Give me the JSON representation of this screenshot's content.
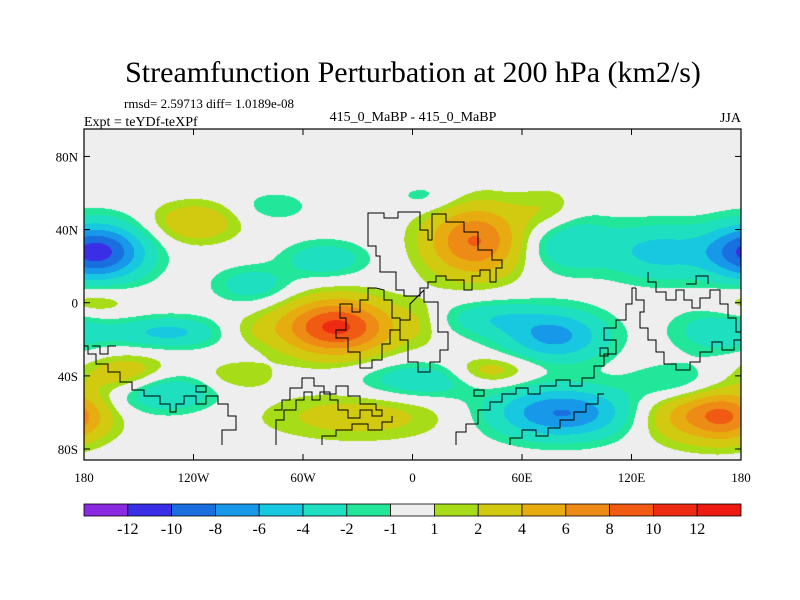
{
  "chart_data": {
    "type": "heatmap",
    "title": "Streamfunction Perturbation at 200 hPa (km2/s)",
    "stats_line": "rmsd= 2.59713 diff= 1.0189e-08",
    "experiment_label": "Expt = teYDf-teXPf",
    "center_label": "415_0_MaBP - 415_0_MaBP",
    "season_label": "JJA",
    "x_range": [
      -180,
      180
    ],
    "y_range": [
      -90,
      90
    ],
    "x_ticks": [
      {
        "value": -180,
        "label": "180"
      },
      {
        "value": -120,
        "label": "120W"
      },
      {
        "value": -60,
        "label": "60W"
      },
      {
        "value": 0,
        "label": "0"
      },
      {
        "value": 60,
        "label": "60E"
      },
      {
        "value": 120,
        "label": "120E"
      },
      {
        "value": 180,
        "label": "180"
      }
    ],
    "y_ticks": [
      {
        "value": 80,
        "label": "80N"
      },
      {
        "value": 40,
        "label": "40N"
      },
      {
        "value": 0,
        "label": "0"
      },
      {
        "value": -40,
        "label": "40S"
      },
      {
        "value": -80,
        "label": "80S"
      }
    ],
    "levels": [
      -12,
      -10,
      -8,
      -6,
      -4,
      -2,
      -1,
      1,
      2,
      4,
      6,
      8,
      10,
      12
    ],
    "level_labels": [
      "-12",
      "-10",
      "-8",
      "-6",
      "-4",
      "-2",
      "-1",
      "1",
      "2",
      "4",
      "6",
      "8",
      "10",
      "12"
    ],
    "colors": [
      "#8a2be2",
      "#3a2fe6",
      "#1a6fe0",
      "#1898e8",
      "#18c8e0",
      "#1ee0c0",
      "#22e69a",
      "#eeeeee",
      "#a6dc18",
      "#d2ca10",
      "#e6ac10",
      "#ee8a16",
      "#f05a12",
      "#ee2a12",
      "#ec1a10"
    ],
    "features": [
      {
        "lon": -168,
        "lat": 28,
        "amp": -5.6,
        "sx": 18,
        "sy": 11
      },
      {
        "lon": -120,
        "lat": 44,
        "amp": 3.8,
        "sx": 17,
        "sy": 8
      },
      {
        "lon": -88,
        "lat": 10,
        "amp": -3.2,
        "sx": 15,
        "sy": 7
      },
      {
        "lon": -48,
        "lat": 24,
        "amp": -3.5,
        "sx": 16,
        "sy": 7
      },
      {
        "lon": -76,
        "lat": 53,
        "amp": -1.8,
        "sx": 14,
        "sy": 6
      },
      {
        "lon": 8,
        "lat": 58,
        "amp": -1.7,
        "sx": 14,
        "sy": 6
      },
      {
        "lon": 34,
        "lat": 34,
        "amp": 8.2,
        "sx": 19,
        "sy": 14
      },
      {
        "lon": 74,
        "lat": 50,
        "amp": 2.2,
        "sx": 12,
        "sy": 9
      },
      {
        "lon": 84,
        "lat": 33,
        "amp": -4.0,
        "sx": 17,
        "sy": 11
      },
      {
        "lon": 134,
        "lat": 28,
        "amp": -4.6,
        "sx": 20,
        "sy": 11
      },
      {
        "lon": 182,
        "lat": 28,
        "amp": -5.8,
        "sx": 18,
        "sy": 11
      },
      {
        "lon": -176,
        "lat": 0,
        "amp": 2.4,
        "sx": 16,
        "sy": 6
      },
      {
        "lon": -90,
        "lat": -15,
        "amp": 1.4,
        "sx": 14,
        "sy": 6
      },
      {
        "lon": -134,
        "lat": -16,
        "amp": -4.6,
        "sx": 22,
        "sy": 6
      },
      {
        "lon": -42,
        "lat": -13,
        "amp": 10.6,
        "sx": 22,
        "sy": 11
      },
      {
        "lon": 42,
        "lat": -8,
        "amp": -3.2,
        "sx": 19,
        "sy": 7
      },
      {
        "lon": 78,
        "lat": -18,
        "amp": -6.6,
        "sx": 20,
        "sy": 10
      },
      {
        "lon": 168,
        "lat": -15,
        "amp": -3.4,
        "sx": 18,
        "sy": 9
      },
      {
        "lon": -156,
        "lat": -40,
        "amp": 4.6,
        "sx": 18,
        "sy": 8
      },
      {
        "lon": -98,
        "lat": -40,
        "amp": 2.2,
        "sx": 15,
        "sy": 6
      },
      {
        "lon": -140,
        "lat": -48,
        "amp": -5.2,
        "sx": 22,
        "sy": 8
      },
      {
        "lon": 5,
        "lat": -42,
        "amp": -3.8,
        "sx": 24,
        "sy": 7
      },
      {
        "lon": 40,
        "lat": -38,
        "amp": 3.0,
        "sx": 15,
        "sy": 6
      },
      {
        "lon": 52,
        "lat": -35,
        "amp": 0.9,
        "sx": 18,
        "sy": 5
      },
      {
        "lon": 145,
        "lat": -45,
        "amp": -3.4,
        "sx": 18,
        "sy": 8
      },
      {
        "lon": -30,
        "lat": -62,
        "amp": 3.0,
        "sx": 36,
        "sy": 9
      },
      {
        "lon": 82,
        "lat": -60,
        "amp": -8.2,
        "sx": 28,
        "sy": 10
      },
      {
        "lon": 158,
        "lat": -60,
        "amp": 6.8,
        "sx": 24,
        "sy": 11
      },
      {
        "lon": -187,
        "lat": -63,
        "amp": 3.2,
        "sx": 12,
        "sy": 9
      },
      {
        "lon": 5,
        "lat": -10,
        "amp": 1.2,
        "sx": 8,
        "sy": 10
      }
    ]
  }
}
